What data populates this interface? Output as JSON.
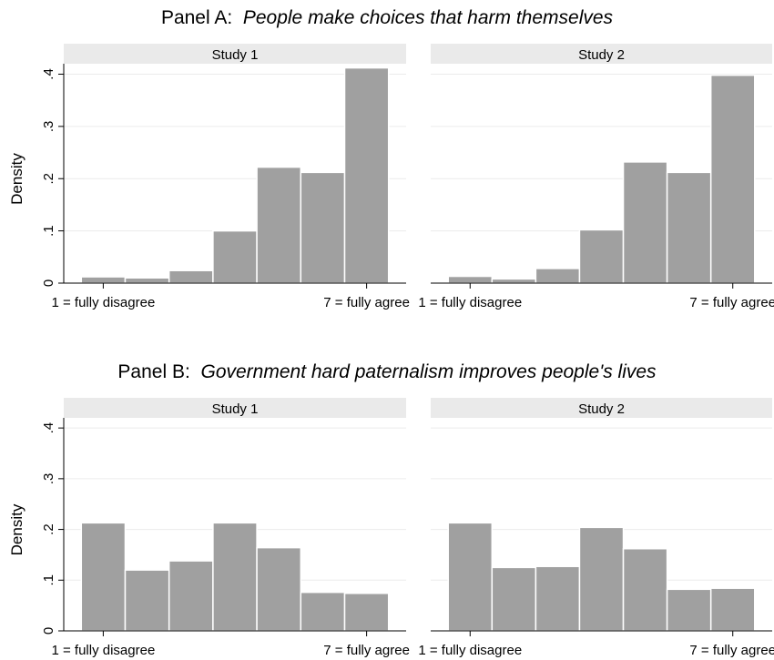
{
  "chart_data": {
    "type": "bar",
    "ylabel": "Density",
    "yticks": [
      "0",
      ".1",
      ".2",
      ".3",
      ".4"
    ],
    "ylim": [
      0,
      0.42
    ],
    "x_tick_labels": [
      "1 = fully disagree",
      "7 = fully agree"
    ],
    "grid": true,
    "bar_color": "#a0a0a0",
    "strip_color": "#eaeaea",
    "panels": [
      {
        "prefix": "Panel A:",
        "title": "People make choices that harm themselves",
        "subplots": [
          {
            "strip": "Study 1",
            "values": [
              0.012,
              0.01,
              0.024,
              0.1,
              0.222,
              0.212,
              0.412
            ]
          },
          {
            "strip": "Study 2",
            "values": [
              0.013,
              0.008,
              0.028,
              0.102,
              0.232,
              0.212,
              0.398
            ]
          }
        ]
      },
      {
        "prefix": "Panel B:",
        "title": "Government hard paternalism improves people's lives",
        "subplots": [
          {
            "strip": "Study 1",
            "values": [
              0.213,
              0.12,
              0.138,
              0.213,
              0.164,
              0.076,
              0.074
            ]
          },
          {
            "strip": "Study 2",
            "values": [
              0.213,
              0.125,
              0.127,
              0.204,
              0.162,
              0.082,
              0.084
            ]
          }
        ]
      }
    ]
  }
}
